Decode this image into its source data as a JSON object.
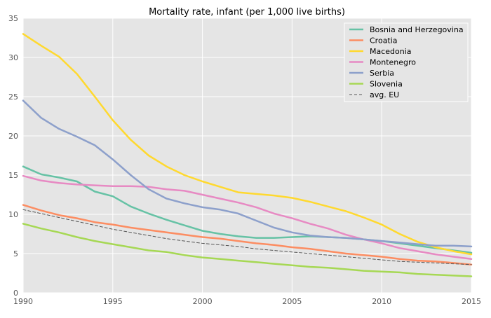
{
  "chart_data": {
    "type": "line",
    "title": "Mortality rate, infant (per 1,000 live births)",
    "xlabel": "",
    "ylabel": "",
    "xlim": [
      1990,
      2015
    ],
    "ylim": [
      0,
      35
    ],
    "x_ticks": [
      1990,
      1995,
      2000,
      2005,
      2010,
      2015
    ],
    "y_ticks": [
      0,
      5,
      10,
      15,
      20,
      25,
      30,
      35
    ],
    "grid": true,
    "legend_position": "top-right",
    "x": [
      1990,
      1991,
      1992,
      1993,
      1994,
      1995,
      1996,
      1997,
      1998,
      1999,
      2000,
      2001,
      2002,
      2003,
      2004,
      2005,
      2006,
      2007,
      2008,
      2009,
      2010,
      2011,
      2012,
      2013,
      2014,
      2015
    ],
    "series": [
      {
        "name": "Bosnia and Herzegovina",
        "color": "#66c2a5",
        "dashed": false,
        "values": [
          16.1,
          15.1,
          14.7,
          14.2,
          12.9,
          12.3,
          11.0,
          10.1,
          9.3,
          8.6,
          7.9,
          7.5,
          7.2,
          7.0,
          7.0,
          7.1,
          7.2,
          7.1,
          7.0,
          6.8,
          6.6,
          6.3,
          6.0,
          5.7,
          5.4,
          5.1
        ]
      },
      {
        "name": "Croatia",
        "color": "#fc8d62",
        "dashed": false,
        "values": [
          11.2,
          10.5,
          9.9,
          9.5,
          9.0,
          8.7,
          8.3,
          8.0,
          7.7,
          7.4,
          7.1,
          6.9,
          6.6,
          6.3,
          6.1,
          5.8,
          5.6,
          5.3,
          5.0,
          4.8,
          4.6,
          4.3,
          4.1,
          4.0,
          3.8,
          3.6
        ]
      },
      {
        "name": "Macedonia",
        "color": "#ffd92f",
        "dashed": false,
        "values": [
          33.0,
          31.5,
          30.1,
          27.9,
          25.0,
          22.0,
          19.5,
          17.5,
          16.1,
          15.0,
          14.2,
          13.5,
          12.8,
          12.6,
          12.4,
          12.1,
          11.6,
          11.0,
          10.4,
          9.6,
          8.7,
          7.5,
          6.5,
          5.8,
          5.3,
          4.9
        ]
      },
      {
        "name": "Montenegro",
        "color": "#e78ac3",
        "dashed": false,
        "values": [
          14.9,
          14.3,
          14.0,
          13.8,
          13.7,
          13.6,
          13.6,
          13.5,
          13.2,
          13.0,
          12.5,
          12.0,
          11.5,
          10.9,
          10.1,
          9.5,
          8.8,
          8.2,
          7.4,
          6.8,
          6.3,
          5.7,
          5.3,
          4.9,
          4.6,
          4.3
        ]
      },
      {
        "name": "Serbia",
        "color": "#8da0cb",
        "dashed": false,
        "values": [
          24.5,
          22.3,
          20.9,
          19.9,
          18.8,
          17.0,
          15.0,
          13.2,
          12.0,
          11.4,
          10.9,
          10.6,
          10.1,
          9.2,
          8.3,
          7.7,
          7.3,
          7.1,
          7.0,
          6.8,
          6.6,
          6.4,
          6.2,
          6.0,
          6.0,
          5.9
        ]
      },
      {
        "name": "Slovenia",
        "color": "#a6d854",
        "dashed": false,
        "values": [
          8.8,
          8.2,
          7.7,
          7.1,
          6.6,
          6.2,
          5.8,
          5.4,
          5.2,
          4.8,
          4.5,
          4.3,
          4.1,
          3.9,
          3.7,
          3.5,
          3.3,
          3.2,
          3.0,
          2.8,
          2.7,
          2.6,
          2.4,
          2.3,
          2.2,
          2.1
        ]
      },
      {
        "name": "avg. EU",
        "color": "#555555",
        "dashed": true,
        "values": [
          10.6,
          10.1,
          9.6,
          9.1,
          8.6,
          8.1,
          7.7,
          7.3,
          6.9,
          6.6,
          6.3,
          6.1,
          5.9,
          5.6,
          5.4,
          5.2,
          5.0,
          4.8,
          4.6,
          4.4,
          4.2,
          4.0,
          3.9,
          3.8,
          3.7,
          3.6
        ]
      }
    ]
  }
}
